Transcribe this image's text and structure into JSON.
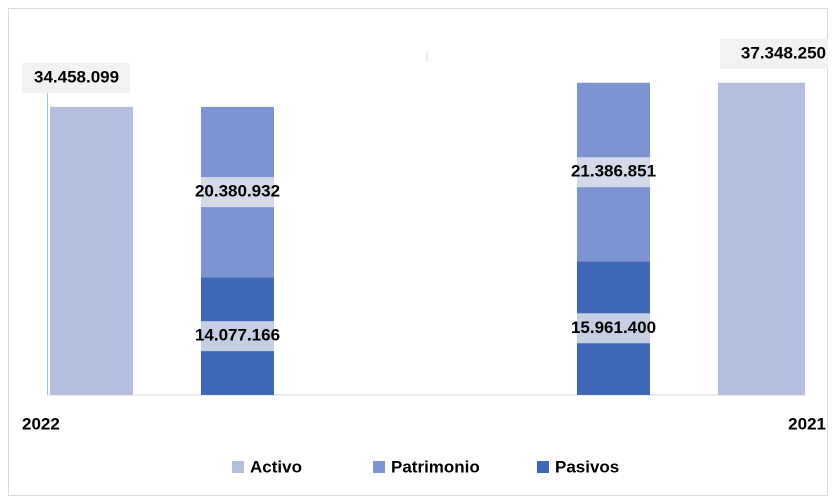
{
  "chart_data": {
    "type": "bar",
    "categories": [
      "2022",
      "2021"
    ],
    "series": [
      {
        "name": "Activo",
        "color": "#b4bfe0",
        "values": [
          34458099,
          37348250
        ],
        "value_labels": [
          "34.458.099",
          "37.348.250"
        ]
      },
      {
        "name": "Patrimonio",
        "color": "#7d94d2",
        "values": [
          20380932,
          21386851
        ],
        "value_labels": [
          "20.380.932",
          "21.386.851"
        ]
      },
      {
        "name": "Pasivos",
        "color": "#3f68b9",
        "values": [
          14077166,
          15961400
        ],
        "value_labels": [
          "14.077.166",
          "15.961.400"
        ]
      }
    ],
    "ylim": [
      0,
      40000000
    ]
  }
}
